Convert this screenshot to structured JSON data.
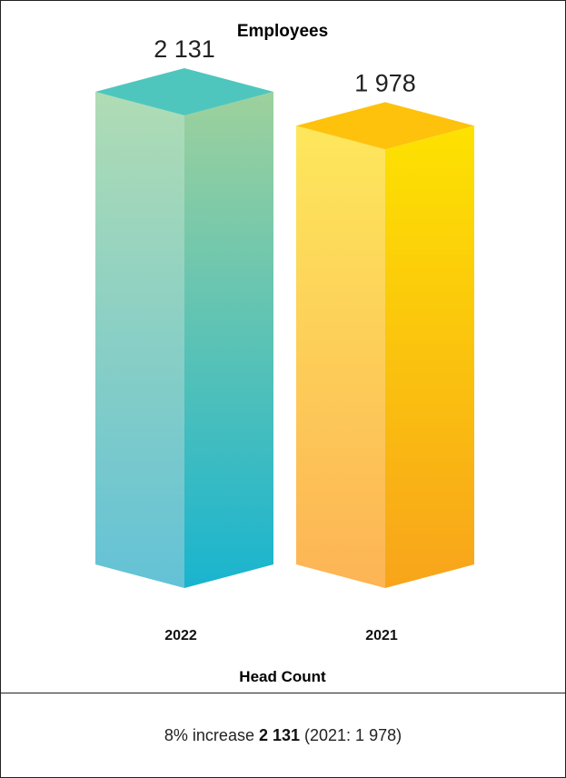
{
  "chart_data": {
    "type": "bar",
    "title": "Employees",
    "xlabel": "Head Count",
    "ylabel": "",
    "categories": [
      "2022",
      "2021"
    ],
    "values": [
      2131,
      1978
    ],
    "value_labels": [
      "2 131",
      "1 978"
    ],
    "ylim": [
      0,
      2131
    ],
    "grid": false,
    "legend": "none",
    "colors": {
      "2022": {
        "top": "#4fc6bd",
        "front_top": "#b0dcb4",
        "front_bottom": "#63c2d6",
        "side_top": "#9ed19c",
        "side_bottom": "#19b4cf"
      },
      "2021": {
        "top": "#fec20c",
        "front_top": "#fde75c",
        "front_bottom": "#fdb455",
        "side_top": "#fde201",
        "side_bottom": "#f8a41b"
      }
    }
  },
  "footer": {
    "prefix": "8% increase ",
    "value": "2 131",
    "suffix": " (2021: 1 978)"
  }
}
